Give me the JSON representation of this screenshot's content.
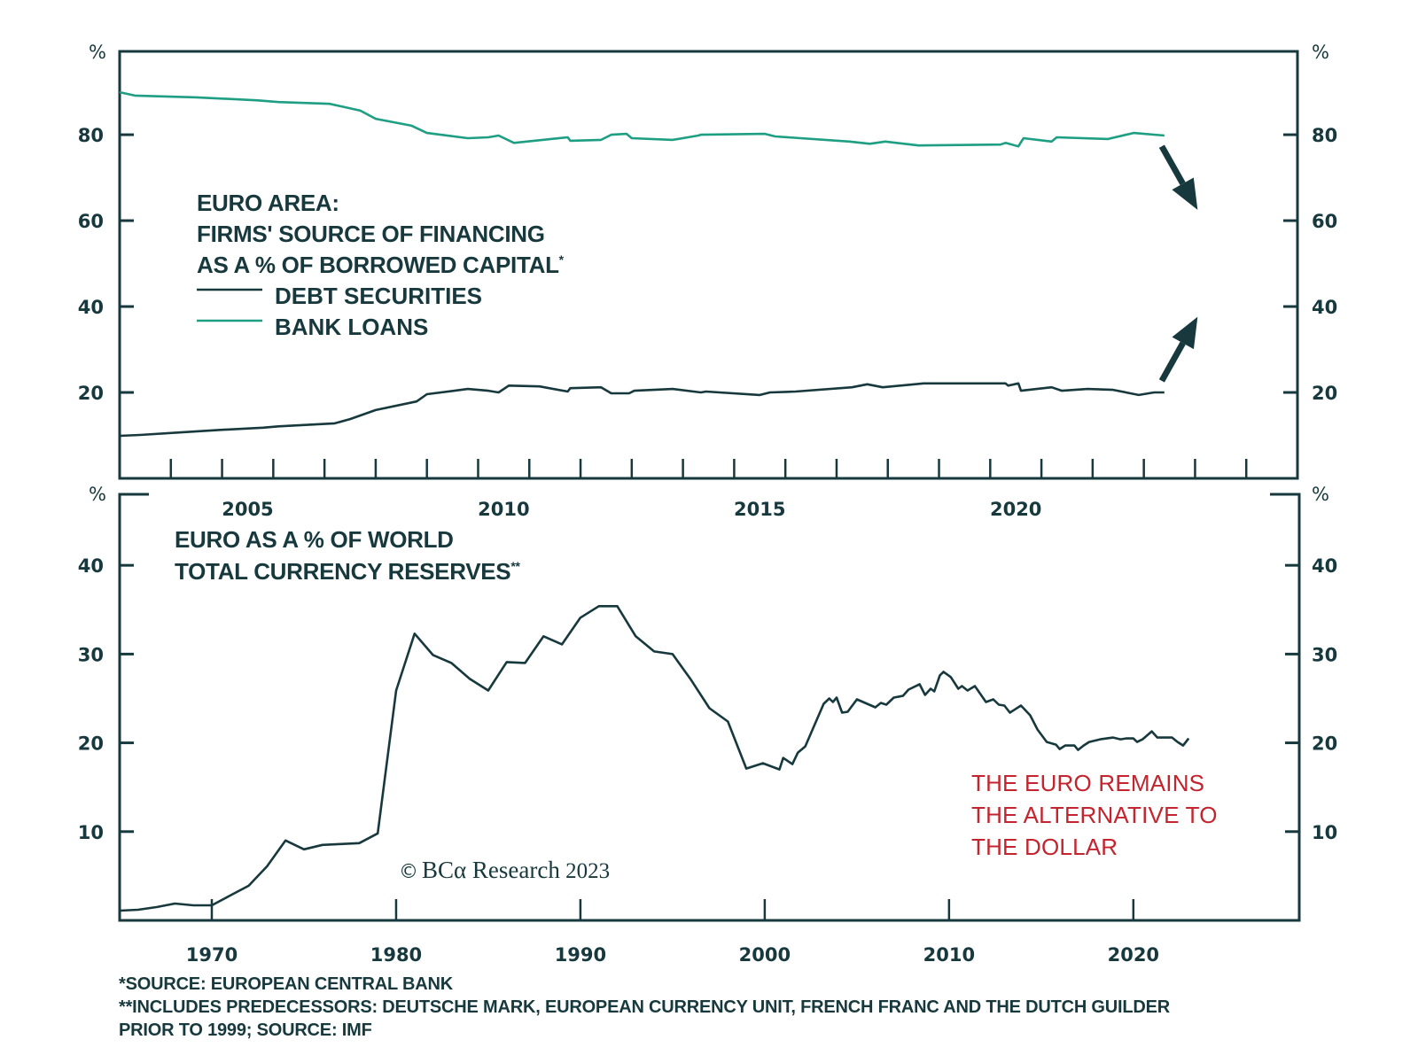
{
  "chart_data": [
    {
      "type": "line",
      "title": "EURO AREA:",
      "subtitle_lines": [
        "FIRMS' SOURCE OF FINANCING",
        "AS A % OF BORROWED CAPITAL*"
      ],
      "ylabel": "%",
      "ylabel_right": "%",
      "ylim": [
        0,
        100
      ],
      "yticks": [
        20,
        40,
        60,
        80
      ],
      "xlim": [
        2003,
        2026
      ],
      "xticks_minor_every_year": true,
      "xtick_labels": [
        "2005",
        "2010",
        "2015",
        "2020"
      ],
      "xtick_label_years": [
        2005.5,
        2010.5,
        2015.5,
        2020.5
      ],
      "grid": false,
      "legend_position": "upper-left",
      "series": [
        {
          "name": "DEBT SECURITIES",
          "color": "#17393d",
          "x": [
            2003.0,
            2003.4,
            2004.2,
            2005.0,
            2005.8,
            2006.1,
            2007.2,
            2007.5,
            2008.0,
            2008.8,
            2009.0,
            2009.8,
            2010.2,
            2010.4,
            2010.6,
            2011.2,
            2011.75,
            2011.8,
            2012.4,
            2012.6,
            2012.95,
            2013.05,
            2013.8,
            2014.35,
            2014.45,
            2015.5,
            2015.7,
            2016.2,
            2017.3,
            2017.6,
            2017.9,
            2018.7,
            2020.3,
            2020.35,
            2020.55,
            2020.6,
            2021.2,
            2021.4,
            2021.9,
            2022.4,
            2022.9,
            2023.2,
            2023.4
          ],
          "y": [
            9.9,
            10.1,
            10.7,
            11.3,
            11.8,
            12.1,
            12.8,
            13.8,
            15.9,
            17.9,
            19.6,
            20.8,
            20.4,
            20.0,
            21.6,
            21.4,
            20.2,
            21.0,
            21.2,
            19.8,
            19.8,
            20.4,
            20.8,
            20.0,
            20.2,
            19.4,
            20.0,
            20.2,
            21.2,
            21.9,
            21.2,
            22.1,
            22.1,
            21.6,
            22.1,
            20.4,
            21.2,
            20.4,
            20.8,
            20.6,
            19.4,
            20.0,
            20.0
          ]
        },
        {
          "name": "BANK LOANS",
          "color": "#1e9e83",
          "x": [
            2003.0,
            2003.3,
            2004.5,
            2005.7,
            2006.1,
            2007.1,
            2007.7,
            2008.0,
            2008.7,
            2009.0,
            2009.8,
            2010.2,
            2010.4,
            2010.7,
            2011.75,
            2011.8,
            2012.4,
            2012.6,
            2012.9,
            2013.0,
            2013.8,
            2014.3,
            2014.35,
            2015.6,
            2015.8,
            2017.25,
            2017.65,
            2017.95,
            2018.6,
            2020.2,
            2020.3,
            2020.55,
            2020.65,
            2021.2,
            2021.3,
            2022.3,
            2022.8,
            2023.4
          ],
          "y": [
            89.9,
            89.1,
            88.7,
            88.0,
            87.6,
            87.2,
            85.6,
            83.7,
            82.1,
            80.4,
            79.2,
            79.4,
            79.8,
            78.1,
            79.4,
            78.6,
            78.8,
            80.0,
            80.2,
            79.2,
            78.8,
            79.8,
            80.0,
            80.2,
            79.6,
            78.4,
            77.9,
            78.4,
            77.5,
            77.7,
            78.1,
            77.3,
            79.2,
            78.4,
            79.4,
            79.0,
            80.4,
            79.8
          ]
        }
      ],
      "annotations": [
        {
          "type": "arrow",
          "direction": "down",
          "from": [
            2023.35,
            77.3
          ],
          "to": [
            2024.05,
            62.5
          ]
        },
        {
          "type": "arrow",
          "direction": "up",
          "from": [
            2023.35,
            22.7
          ],
          "to": [
            2024.05,
            37.6
          ]
        }
      ]
    },
    {
      "type": "line",
      "title_lines": [
        "EURO AS A % OF WORLD",
        "TOTAL CURRENCY RESERVES**"
      ],
      "ylabel": "%",
      "ylabel_right": "%",
      "ylim": [
        0,
        48
      ],
      "yticks": [
        10,
        20,
        30,
        40
      ],
      "xlim": [
        1965,
        2029
      ],
      "xticks": [
        1970,
        1980,
        1990,
        2000,
        2010,
        2020
      ],
      "xtick_labels": [
        "1970",
        "1980",
        "1990",
        "2000",
        "2010",
        "2020"
      ],
      "grid": false,
      "series": [
        {
          "name": "EURO SHARE OF RESERVES",
          "color": "#17393d",
          "x": [
            1965,
            1966,
            1967,
            1968,
            1969,
            1970,
            1971,
            1972,
            1973,
            1974,
            1975,
            1976,
            1977,
            1978,
            1979,
            1980,
            1981,
            1982,
            1983,
            1984,
            1985,
            1986,
            1987,
            1988,
            1989,
            1990,
            1991,
            1992,
            1993,
            1994,
            1995,
            1996,
            1997,
            1998,
            1999,
            1999.9,
            2000.8,
            2001.0,
            2001.5,
            2001.8,
            2002.2,
            2003.2,
            2003.5,
            2003.7,
            2003.9,
            2004.2,
            2004.5,
            2005.0,
            2006.0,
            2006.3,
            2006.6,
            2007.0,
            2007.5,
            2007.8,
            2008.4,
            2008.7,
            2009.0,
            2009.2,
            2009.5,
            2009.7,
            2010.1,
            2010.5,
            2010.7,
            2011.0,
            2011.4,
            2012.0,
            2012.4,
            2012.7,
            2013.0,
            2013.3,
            2013.9,
            2014.4,
            2014.8,
            2015.3,
            2015.8,
            2016.0,
            2016.3,
            2016.8,
            2017.0,
            2017.3,
            2017.6,
            2018.2,
            2018.9,
            2019.3,
            2019.6,
            2020.0,
            2020.2,
            2020.5,
            2021.0,
            2021.3,
            2022.1,
            2022.4,
            2022.7,
            2023.0
          ],
          "y": [
            1.1,
            1.2,
            1.5,
            1.9,
            1.7,
            1.7,
            2.8,
            3.9,
            6.1,
            9.0,
            8.0,
            8.5,
            8.6,
            8.7,
            9.8,
            25.9,
            32.3,
            29.9,
            29.0,
            27.2,
            25.9,
            29.1,
            29.0,
            32.0,
            31.1,
            34.1,
            35.4,
            35.4,
            32.0,
            30.3,
            30.0,
            27.1,
            23.9,
            22.4,
            17.1,
            17.7,
            17.0,
            18.3,
            17.6,
            18.9,
            19.6,
            24.4,
            25.0,
            24.6,
            25.1,
            23.4,
            23.5,
            24.9,
            24.0,
            24.5,
            24.3,
            25.1,
            25.3,
            26.0,
            26.6,
            25.4,
            26.1,
            25.8,
            27.6,
            28.0,
            27.4,
            26.1,
            26.4,
            25.9,
            26.4,
            24.6,
            24.9,
            24.3,
            24.2,
            23.4,
            24.2,
            23.1,
            21.5,
            20.1,
            19.8,
            19.3,
            19.7,
            19.7,
            19.2,
            19.7,
            20.1,
            20.4,
            20.6,
            20.4,
            20.5,
            20.5,
            20.1,
            20.4,
            21.3,
            20.6,
            20.6,
            20.1,
            19.7,
            20.5
          ]
        }
      ],
      "annotations": [
        {
          "type": "text",
          "lines": [
            "THE EURO REMAINS",
            "THE ALTERNATIVE TO",
            "THE DOLLAR"
          ],
          "color": "#c4242e",
          "position": "lower-right"
        },
        {
          "type": "text",
          "text": "© BCA Research 2023",
          "position": "lower-center"
        }
      ]
    }
  ],
  "top": {
    "pct_left": "%",
    "pct_right": "%",
    "yticks": [
      "20",
      "40",
      "60",
      "80"
    ],
    "title": "EURO AREA:",
    "subtitle1": "FIRMS' SOURCE OF FINANCING",
    "subtitle2": "AS A % OF BORROWED CAPITAL",
    "subtitle2_mark": "*",
    "legend_debt": "DEBT SECURITIES",
    "legend_loans": "BANK LOANS",
    "xlabels": [
      "2005",
      "2010",
      "2015",
      "2020"
    ]
  },
  "bottom": {
    "pct_left": "%",
    "pct_right": "%",
    "yticks": [
      "10",
      "20",
      "30",
      "40"
    ],
    "title1": "EURO AS A % OF WORLD",
    "title2": "TOTAL CURRENCY RESERVES",
    "title2_mark": "**",
    "xlabels": [
      "1970",
      "1980",
      "1990",
      "2000",
      "2010",
      "2020"
    ],
    "callout1": "THE EURO REMAINS",
    "callout2": "THE ALTERNATIVE TO",
    "callout3": "THE DOLLAR",
    "copyright_symbol": "©",
    "copyright_brand": "BCα",
    "copyright_rest": " Research",
    "copyright_year": " 2023"
  },
  "footnotes": {
    "line1": "*SOURCE: EUROPEAN CENTRAL BANK",
    "line2": "**INCLUDES PREDECESSORS: DEUTSCHE MARK, EUROPEAN CURRENCY UNIT, FRENCH FRANC AND THE DUTCH GUILDER",
    "line3": "PRIOR TO 1999; SOURCE: IMF"
  },
  "colors": {
    "ink": "#17393d",
    "bank_loans": "#1e9e83",
    "callout_red": "#c4242e"
  }
}
